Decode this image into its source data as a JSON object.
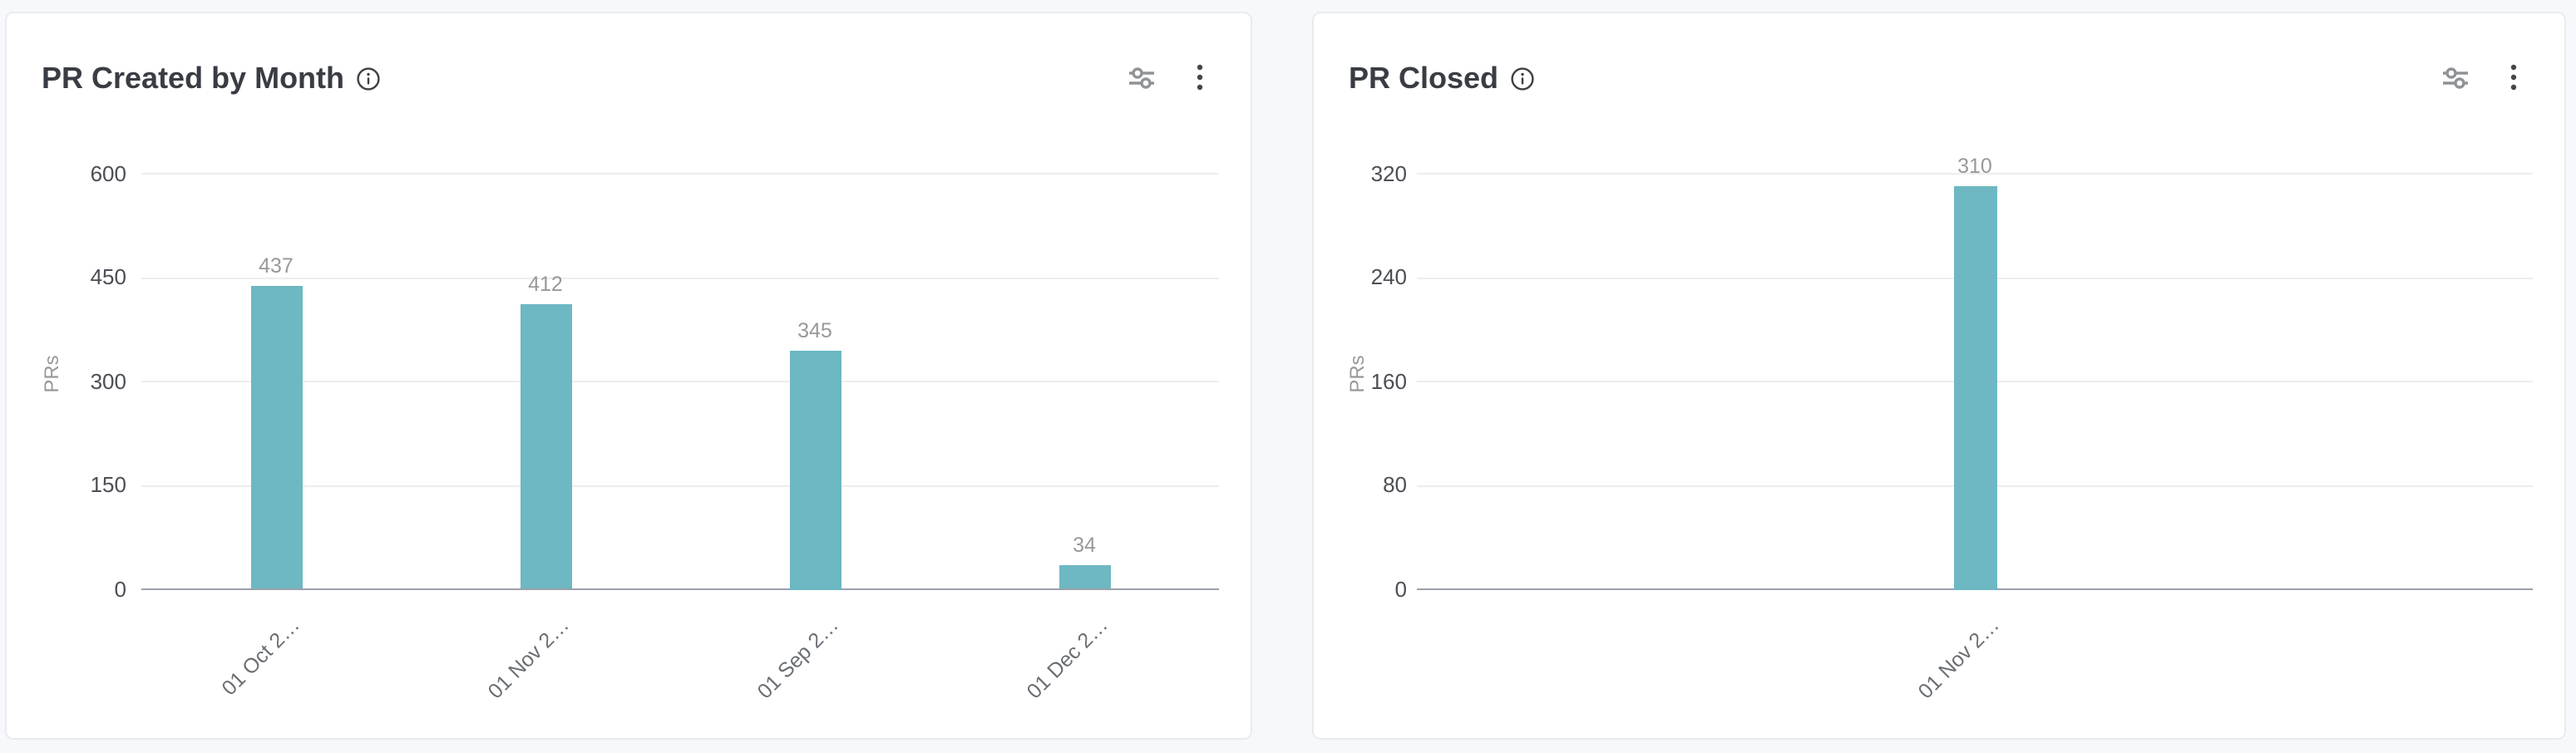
{
  "cards": [
    {
      "title": "PR Created by Month"
    },
    {
      "title": "PR Closed"
    }
  ],
  "icons": {
    "info": "info-icon",
    "filter": "filter-sliders-icon",
    "menu": "kebab-menu-icon"
  },
  "colors": {
    "bar": "#6db8c2",
    "page_background": "#f7f8fb",
    "card_background": "#ffffff",
    "axis_line": "#9aa1ab",
    "gridline": "#ededed"
  },
  "chart_data": [
    {
      "type": "bar",
      "title": "PR Created by Month",
      "categories": [
        "01 Oct 2…",
        "01 Nov 2…",
        "01 Sep 2…",
        "01 Dec 2…"
      ],
      "values": [
        437,
        412,
        345,
        34
      ],
      "data_labels": [
        437,
        412,
        345,
        34
      ],
      "xlabel": "",
      "ylabel": "PRs",
      "yticks": [
        600,
        450,
        300,
        150,
        0
      ],
      "ylim": [
        0,
        600
      ],
      "grid": true,
      "legend": false,
      "bar_color": "#6db8c2"
    },
    {
      "type": "bar",
      "title": "PR Closed",
      "categories": [
        "01 Nov 2…"
      ],
      "values": [
        310
      ],
      "data_labels": [
        310
      ],
      "xlabel": "",
      "ylabel": "PRs",
      "yticks": [
        320,
        240,
        160,
        80,
        0
      ],
      "ylim": [
        0,
        320
      ],
      "grid": true,
      "legend": false,
      "bar_color": "#6db8c2"
    }
  ]
}
